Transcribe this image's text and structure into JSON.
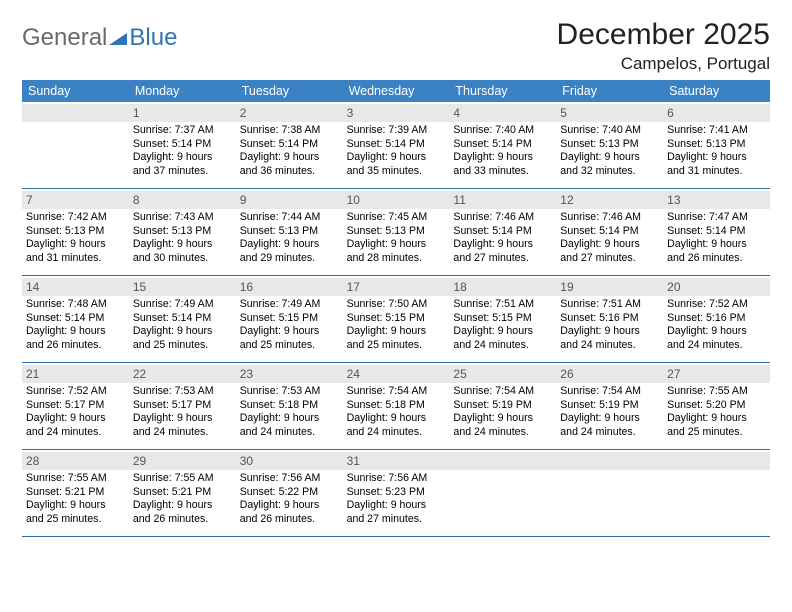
{
  "logo": {
    "part1": "General",
    "part2": "Blue"
  },
  "title": "December 2025",
  "location": "Campelos, Portugal",
  "colors": {
    "header_bg": "#3b82c4",
    "row_border": "#2f6da8",
    "daynum_bg": "#e8e8e8",
    "logo_gray": "#6a6a6a",
    "logo_blue": "#2f74b5"
  },
  "dow": [
    "Sunday",
    "Monday",
    "Tuesday",
    "Wednesday",
    "Thursday",
    "Friday",
    "Saturday"
  ],
  "weeks": [
    [
      null,
      {
        "n": "1",
        "sr": "7:37 AM",
        "ss": "5:14 PM",
        "dl": "9 hours and 37 minutes."
      },
      {
        "n": "2",
        "sr": "7:38 AM",
        "ss": "5:14 PM",
        "dl": "9 hours and 36 minutes."
      },
      {
        "n": "3",
        "sr": "7:39 AM",
        "ss": "5:14 PM",
        "dl": "9 hours and 35 minutes."
      },
      {
        "n": "4",
        "sr": "7:40 AM",
        "ss": "5:14 PM",
        "dl": "9 hours and 33 minutes."
      },
      {
        "n": "5",
        "sr": "7:40 AM",
        "ss": "5:13 PM",
        "dl": "9 hours and 32 minutes."
      },
      {
        "n": "6",
        "sr": "7:41 AM",
        "ss": "5:13 PM",
        "dl": "9 hours and 31 minutes."
      }
    ],
    [
      {
        "n": "7",
        "sr": "7:42 AM",
        "ss": "5:13 PM",
        "dl": "9 hours and 31 minutes."
      },
      {
        "n": "8",
        "sr": "7:43 AM",
        "ss": "5:13 PM",
        "dl": "9 hours and 30 minutes."
      },
      {
        "n": "9",
        "sr": "7:44 AM",
        "ss": "5:13 PM",
        "dl": "9 hours and 29 minutes."
      },
      {
        "n": "10",
        "sr": "7:45 AM",
        "ss": "5:13 PM",
        "dl": "9 hours and 28 minutes."
      },
      {
        "n": "11",
        "sr": "7:46 AM",
        "ss": "5:14 PM",
        "dl": "9 hours and 27 minutes."
      },
      {
        "n": "12",
        "sr": "7:46 AM",
        "ss": "5:14 PM",
        "dl": "9 hours and 27 minutes."
      },
      {
        "n": "13",
        "sr": "7:47 AM",
        "ss": "5:14 PM",
        "dl": "9 hours and 26 minutes."
      }
    ],
    [
      {
        "n": "14",
        "sr": "7:48 AM",
        "ss": "5:14 PM",
        "dl": "9 hours and 26 minutes."
      },
      {
        "n": "15",
        "sr": "7:49 AM",
        "ss": "5:14 PM",
        "dl": "9 hours and 25 minutes."
      },
      {
        "n": "16",
        "sr": "7:49 AM",
        "ss": "5:15 PM",
        "dl": "9 hours and 25 minutes."
      },
      {
        "n": "17",
        "sr": "7:50 AM",
        "ss": "5:15 PM",
        "dl": "9 hours and 25 minutes."
      },
      {
        "n": "18",
        "sr": "7:51 AM",
        "ss": "5:15 PM",
        "dl": "9 hours and 24 minutes."
      },
      {
        "n": "19",
        "sr": "7:51 AM",
        "ss": "5:16 PM",
        "dl": "9 hours and 24 minutes."
      },
      {
        "n": "20",
        "sr": "7:52 AM",
        "ss": "5:16 PM",
        "dl": "9 hours and 24 minutes."
      }
    ],
    [
      {
        "n": "21",
        "sr": "7:52 AM",
        "ss": "5:17 PM",
        "dl": "9 hours and 24 minutes."
      },
      {
        "n": "22",
        "sr": "7:53 AM",
        "ss": "5:17 PM",
        "dl": "9 hours and 24 minutes."
      },
      {
        "n": "23",
        "sr": "7:53 AM",
        "ss": "5:18 PM",
        "dl": "9 hours and 24 minutes."
      },
      {
        "n": "24",
        "sr": "7:54 AM",
        "ss": "5:18 PM",
        "dl": "9 hours and 24 minutes."
      },
      {
        "n": "25",
        "sr": "7:54 AM",
        "ss": "5:19 PM",
        "dl": "9 hours and 24 minutes."
      },
      {
        "n": "26",
        "sr": "7:54 AM",
        "ss": "5:19 PM",
        "dl": "9 hours and 24 minutes."
      },
      {
        "n": "27",
        "sr": "7:55 AM",
        "ss": "5:20 PM",
        "dl": "9 hours and 25 minutes."
      }
    ],
    [
      {
        "n": "28",
        "sr": "7:55 AM",
        "ss": "5:21 PM",
        "dl": "9 hours and 25 minutes."
      },
      {
        "n": "29",
        "sr": "7:55 AM",
        "ss": "5:21 PM",
        "dl": "9 hours and 26 minutes."
      },
      {
        "n": "30",
        "sr": "7:56 AM",
        "ss": "5:22 PM",
        "dl": "9 hours and 26 minutes."
      },
      {
        "n": "31",
        "sr": "7:56 AM",
        "ss": "5:23 PM",
        "dl": "9 hours and 27 minutes."
      },
      null,
      null,
      null
    ]
  ],
  "labels": {
    "sunrise": "Sunrise:",
    "sunset": "Sunset:",
    "daylight": "Daylight:"
  }
}
